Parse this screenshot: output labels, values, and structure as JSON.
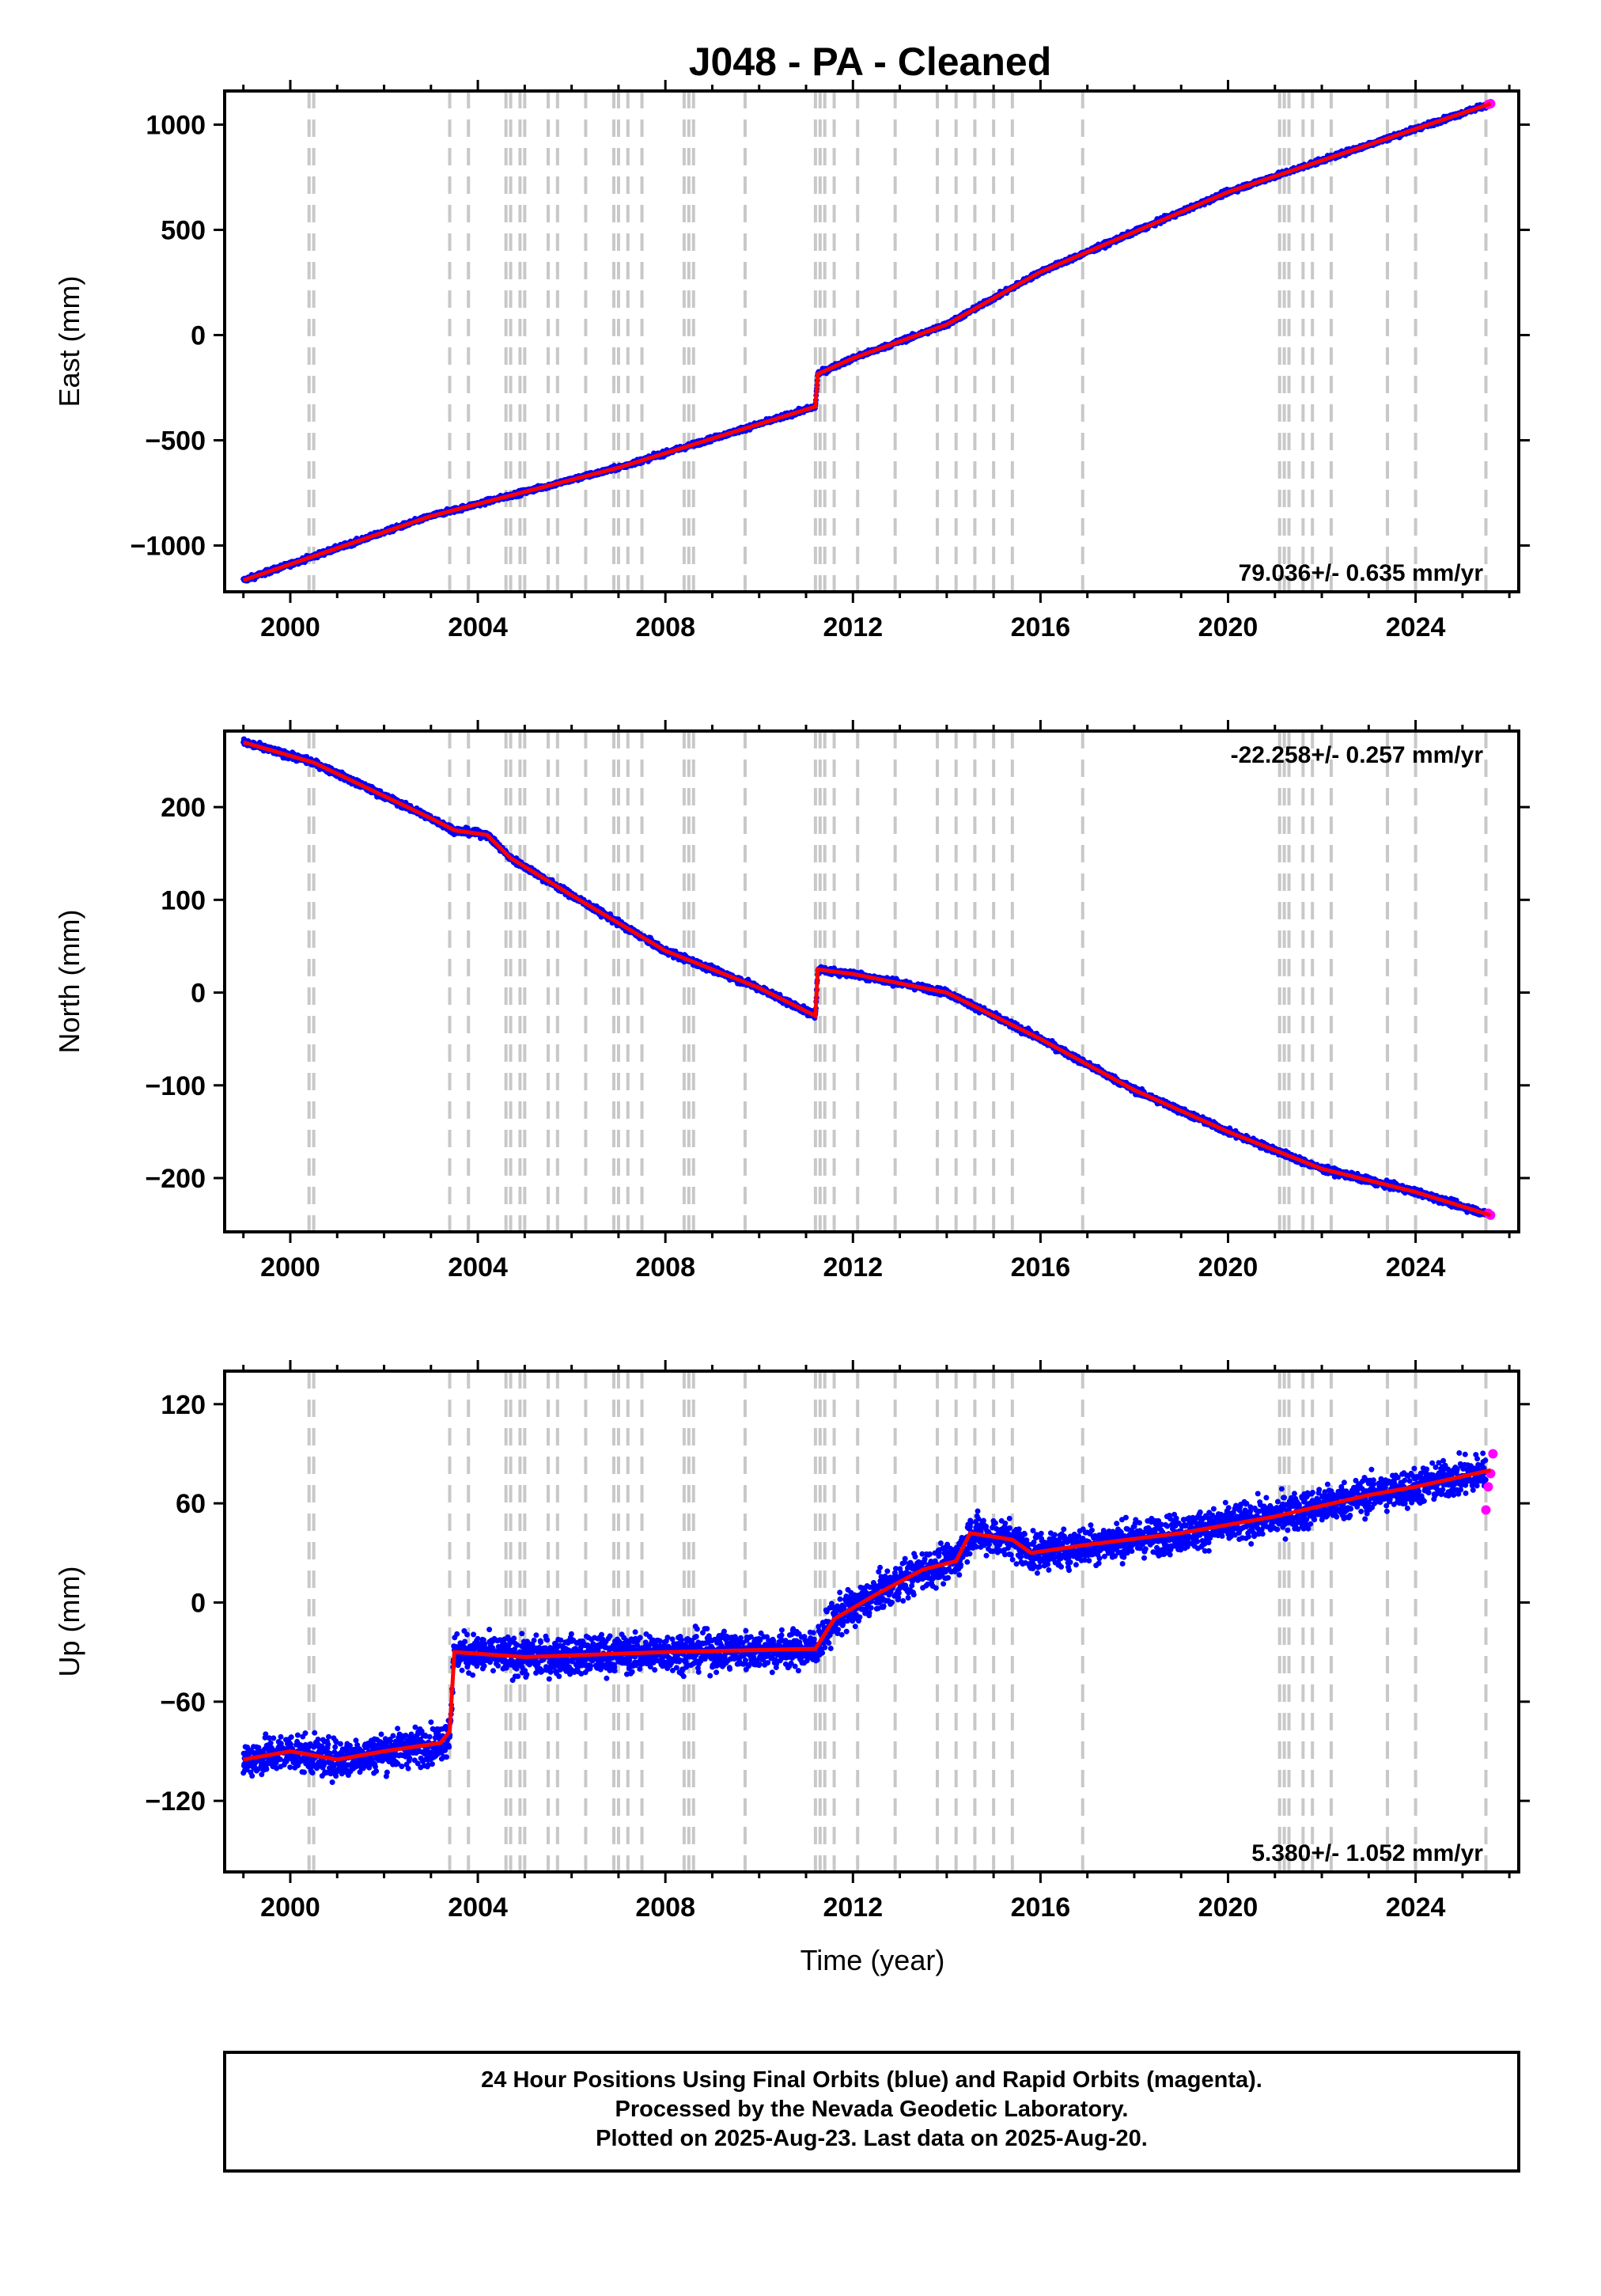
{
  "title": "J048  - PA - Cleaned",
  "colors": {
    "final_orbits": "#0000ff",
    "rapid_orbits": "#ff00ff",
    "model": "#ff0000",
    "event_lines": "#c8c8c8",
    "frame": "#000000"
  },
  "x_axis": {
    "label": "Time (year)",
    "ticks": [
      "2000",
      "2004",
      "2008",
      "2012",
      "2016",
      "2020",
      "2024"
    ],
    "range": [
      1998.6,
      2026.2
    ]
  },
  "event_lines": [
    2000.4,
    2000.5,
    2003.4,
    2003.8,
    2004.6,
    2004.7,
    2004.9,
    2005.0,
    2005.5,
    2005.7,
    2006.3,
    2006.9,
    2007.0,
    2007.2,
    2007.5,
    2008.4,
    2008.5,
    2008.6,
    2009.7,
    2011.2,
    2011.3,
    2011.4,
    2011.6,
    2012.1,
    2012.9,
    2013.8,
    2014.2,
    2014.6,
    2015.0,
    2015.4,
    2016.9,
    2021.1,
    2021.2,
    2021.3,
    2021.6,
    2021.8,
    2022.2,
    2023.4,
    2024.0,
    2025.5
  ],
  "footer": {
    "line1": "24 Hour Positions Using Final Orbits (blue) and Rapid Orbits (magenta).",
    "line2": "Processed by the Nevada Geodetic Laboratory.",
    "line3": "Plotted on 2025-Aug-23. Last data on 2025-Aug-20."
  },
  "chart_data": [
    {
      "type": "scatter",
      "component": "east",
      "ylabel": "East (mm)",
      "yticks": [
        1000,
        500,
        0,
        -500,
        -1000
      ],
      "ylim": [
        -1220,
        1160
      ],
      "rate_text": "79.036+/- 0.635 mm/yr",
      "rate_position": "bottom-right",
      "noise_mm": 8,
      "model_points": [
        [
          1999.0,
          -1165
        ],
        [
          2003.0,
          -860
        ],
        [
          2007.0,
          -630
        ],
        [
          2011.2,
          -340
        ],
        [
          2011.25,
          -185
        ],
        [
          2012.0,
          -110
        ],
        [
          2014.0,
          50
        ],
        [
          2016.0,
          300
        ],
        [
          2020.0,
          680
        ],
        [
          2025.6,
          1100
        ]
      ],
      "rapid_points": [
        [
          2025.55,
          1096
        ],
        [
          2025.6,
          1100
        ]
      ]
    },
    {
      "type": "scatter",
      "component": "north",
      "ylabel": "North (mm)",
      "yticks": [
        200,
        100,
        0,
        -100,
        -200
      ],
      "ylim": [
        -258,
        282
      ],
      "rate_text": "-22.258+/- 0.257 mm/yr",
      "rate_position": "top-right",
      "noise_mm": 2.5,
      "model_points": [
        [
          1999.0,
          270
        ],
        [
          2000.5,
          248
        ],
        [
          2003.0,
          188
        ],
        [
          2003.5,
          175
        ],
        [
          2004.2,
          170
        ],
        [
          2004.7,
          145
        ],
        [
          2006.0,
          105
        ],
        [
          2008.0,
          45
        ],
        [
          2010.0,
          5
        ],
        [
          2011.2,
          -25
        ],
        [
          2011.25,
          25
        ],
        [
          2012.0,
          20
        ],
        [
          2014.0,
          0
        ],
        [
          2016.0,
          -50
        ],
        [
          2018.0,
          -105
        ],
        [
          2020.0,
          -150
        ],
        [
          2022.0,
          -190
        ],
        [
          2024.0,
          -215
        ],
        [
          2025.6,
          -240
        ]
      ],
      "rapid_points": [
        [
          2025.55,
          -238
        ],
        [
          2025.6,
          -240
        ]
      ]
    },
    {
      "type": "scatter",
      "component": "up",
      "ylabel": "Up (mm)",
      "yticks": [
        120,
        60,
        0,
        -60,
        -120
      ],
      "ylim": [
        -163,
        140
      ],
      "rate_text": "5.380+/- 1.052 mm/yr",
      "rate_position": "bottom-right",
      "noise_mm": 8,
      "model_points": [
        [
          1999.0,
          -95
        ],
        [
          2000.0,
          -90
        ],
        [
          2001.0,
          -95
        ],
        [
          2002.0,
          -90
        ],
        [
          2003.2,
          -85
        ],
        [
          2003.4,
          -78
        ],
        [
          2003.5,
          -30
        ],
        [
          2005.0,
          -33
        ],
        [
          2008.0,
          -30
        ],
        [
          2011.2,
          -28
        ],
        [
          2011.6,
          -10
        ],
        [
          2012.5,
          5
        ],
        [
          2013.5,
          20
        ],
        [
          2014.2,
          25
        ],
        [
          2014.5,
          42
        ],
        [
          2015.4,
          38
        ],
        [
          2015.8,
          30
        ],
        [
          2017.0,
          35
        ],
        [
          2019.0,
          42
        ],
        [
          2021.0,
          52
        ],
        [
          2023.0,
          65
        ],
        [
          2024.0,
          70
        ],
        [
          2025.6,
          80
        ]
      ],
      "rapid_points": [
        [
          2025.5,
          56
        ],
        [
          2025.55,
          70
        ],
        [
          2025.6,
          78
        ],
        [
          2025.65,
          90
        ]
      ]
    }
  ]
}
